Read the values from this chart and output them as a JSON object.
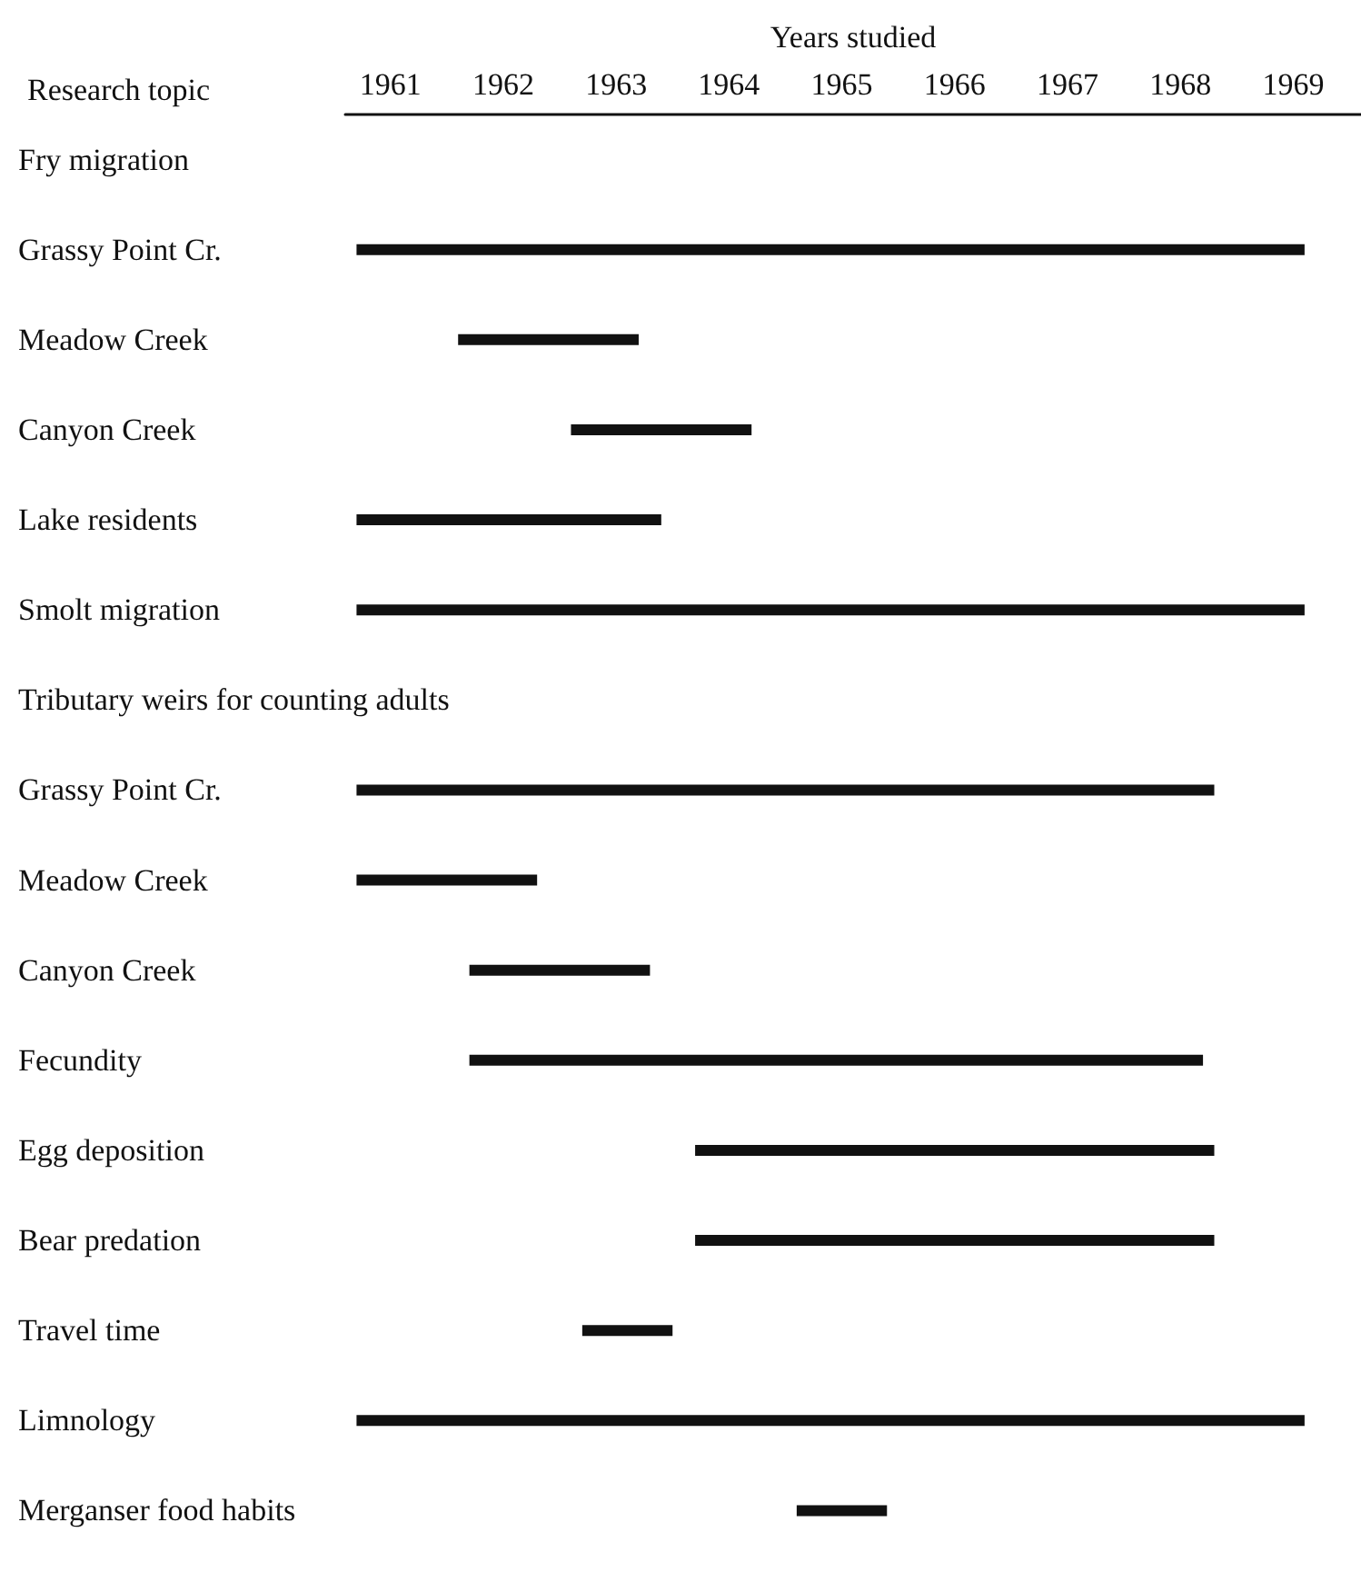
{
  "chart_data": {
    "type": "bar",
    "orientation": "horizontal",
    "xlabel": "Years studied",
    "ylabel": "Research topic",
    "categories": [
      "Fry migration",
      "Grassy Point Cr.",
      "Meadow Creek",
      "Canyon Creek",
      "Lake residents",
      "Smolt migration",
      "Tributary weirs for counting adults",
      "Grassy Point Cr.",
      "Meadow Creek",
      "Canyon Creek",
      "Fecundity",
      "Egg deposition",
      "Bear predation",
      "Travel time",
      "Limnology",
      "Merganser food habits"
    ],
    "base": [
      null,
      1960.7,
      1961.6,
      1962.6,
      1960.7,
      1960.7,
      null,
      1960.7,
      1960.7,
      1961.7,
      1961.7,
      1963.7,
      1963.7,
      1962.7,
      1960.7,
      1964.6
    ],
    "values": [
      null,
      8.4,
      1.6,
      1.6,
      2.7,
      8.4,
      null,
      7.6,
      1.6,
      1.6,
      6.5,
      4.6,
      4.6,
      0.8,
      8.4,
      0.8
    ],
    "color": "#111111",
    "xlim": [
      1960.6,
      1969.6
    ],
    "xticks": [
      1961,
      1962,
      1963,
      1964,
      1965,
      1966,
      1967,
      1968,
      1969
    ],
    "grid": false
  }
}
